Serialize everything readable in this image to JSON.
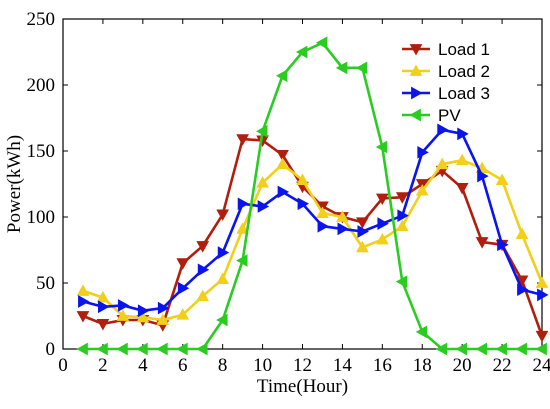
{
  "chart_data": {
    "type": "line",
    "xlabel": "Time(Hour)",
    "ylabel": "Power(kWh)",
    "xlim": [
      0,
      24
    ],
    "ylim": [
      0,
      250
    ],
    "xticks": [
      0,
      2,
      4,
      6,
      8,
      10,
      12,
      14,
      16,
      18,
      20,
      22,
      24
    ],
    "yticks": [
      0,
      50,
      100,
      150,
      200,
      250
    ],
    "grid": false,
    "legend_position": "top-right",
    "x": [
      1,
      2,
      3,
      4,
      5,
      6,
      7,
      8,
      9,
      10,
      11,
      12,
      13,
      14,
      15,
      16,
      17,
      18,
      19,
      20,
      21,
      22,
      23,
      24
    ],
    "series": [
      {
        "name": "Load 1",
        "color": "#b01e0e",
        "marker": "triangle-down",
        "values": [
          25,
          19,
          22,
          22,
          18,
          65,
          78,
          102,
          159,
          158,
          147,
          123,
          108,
          100,
          96,
          114,
          115,
          125,
          135,
          122,
          81,
          79,
          52,
          10
        ]
      },
      {
        "name": "Load 2",
        "color": "#f2cf18",
        "marker": "triangle-up",
        "values": [
          44,
          39,
          25,
          24,
          22,
          26,
          40,
          53,
          91,
          126,
          140,
          128,
          103,
          100,
          77,
          83,
          93,
          120,
          140,
          143,
          137,
          128,
          87,
          50
        ]
      },
      {
        "name": "Load 3",
        "color": "#0a14ee",
        "marker": "triangle-right",
        "values": [
          36,
          32,
          33,
          29,
          31,
          46,
          60,
          73,
          110,
          108,
          119,
          110,
          93,
          91,
          89,
          95,
          101,
          149,
          166,
          163,
          131,
          79,
          45,
          41
        ]
      },
      {
        "name": "PV",
        "color": "#2bcc21",
        "marker": "triangle-left",
        "values": [
          0,
          0,
          0,
          0,
          0,
          0,
          0,
          22,
          67,
          165,
          207,
          225,
          232,
          213,
          213,
          153,
          51,
          13,
          0,
          0,
          0,
          0,
          0,
          0
        ]
      }
    ]
  }
}
